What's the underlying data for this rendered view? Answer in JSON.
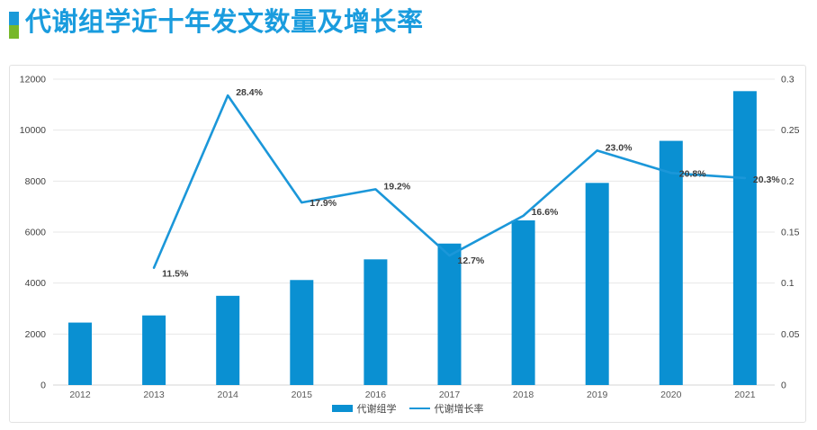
{
  "title": "代谢组学近十年发文数量及增长率",
  "legend": {
    "bar_label": "代谢组学",
    "line_label": "代谢增长率"
  },
  "colors": {
    "bar": "#0a90d2",
    "line": "#1b97d9",
    "title": "#1a9cde",
    "marker_blue": "#1b9ad8",
    "marker_green": "#77b82a",
    "grid": "#e7e7e7",
    "axis_line": "#d6d6d6",
    "tick_text": "#3f3f3f",
    "year_text": "#595959",
    "data_label_text": "#3d3d3d"
  },
  "chart_data": {
    "type": "combo",
    "title": "代谢组学近十年发文数量及增长率",
    "categories": [
      "2012",
      "2013",
      "2014",
      "2015",
      "2016",
      "2017",
      "2018",
      "2019",
      "2020",
      "2021"
    ],
    "series": [
      {
        "name": "代谢组学",
        "type": "bar",
        "axis": "left",
        "values": [
          2450,
          2730,
          3500,
          4120,
          4930,
          5550,
          6460,
          7930,
          9580,
          11530
        ]
      },
      {
        "name": "代谢增长率",
        "type": "line",
        "axis": "right",
        "values": [
          null,
          0.115,
          0.284,
          0.179,
          0.192,
          0.127,
          0.166,
          0.23,
          0.208,
          0.203
        ],
        "labels": [
          null,
          "11.5%",
          "28.4%",
          "17.9%",
          "19.2%",
          "12.7%",
          "16.6%",
          "23.0%",
          "20.8%",
          "20.3%"
        ]
      }
    ],
    "left_axis": {
      "ticks": [
        "0",
        "2000",
        "4000",
        "6000",
        "8000",
        "10000",
        "12000"
      ],
      "min": 0,
      "max": 12000
    },
    "right_axis": {
      "ticks": [
        "0",
        "0.05",
        "0.1",
        "0.15",
        "0.2",
        "0.25",
        "0.3"
      ],
      "min": 0,
      "max": 0.3
    },
    "grid": true,
    "legend_position": "bottom"
  }
}
